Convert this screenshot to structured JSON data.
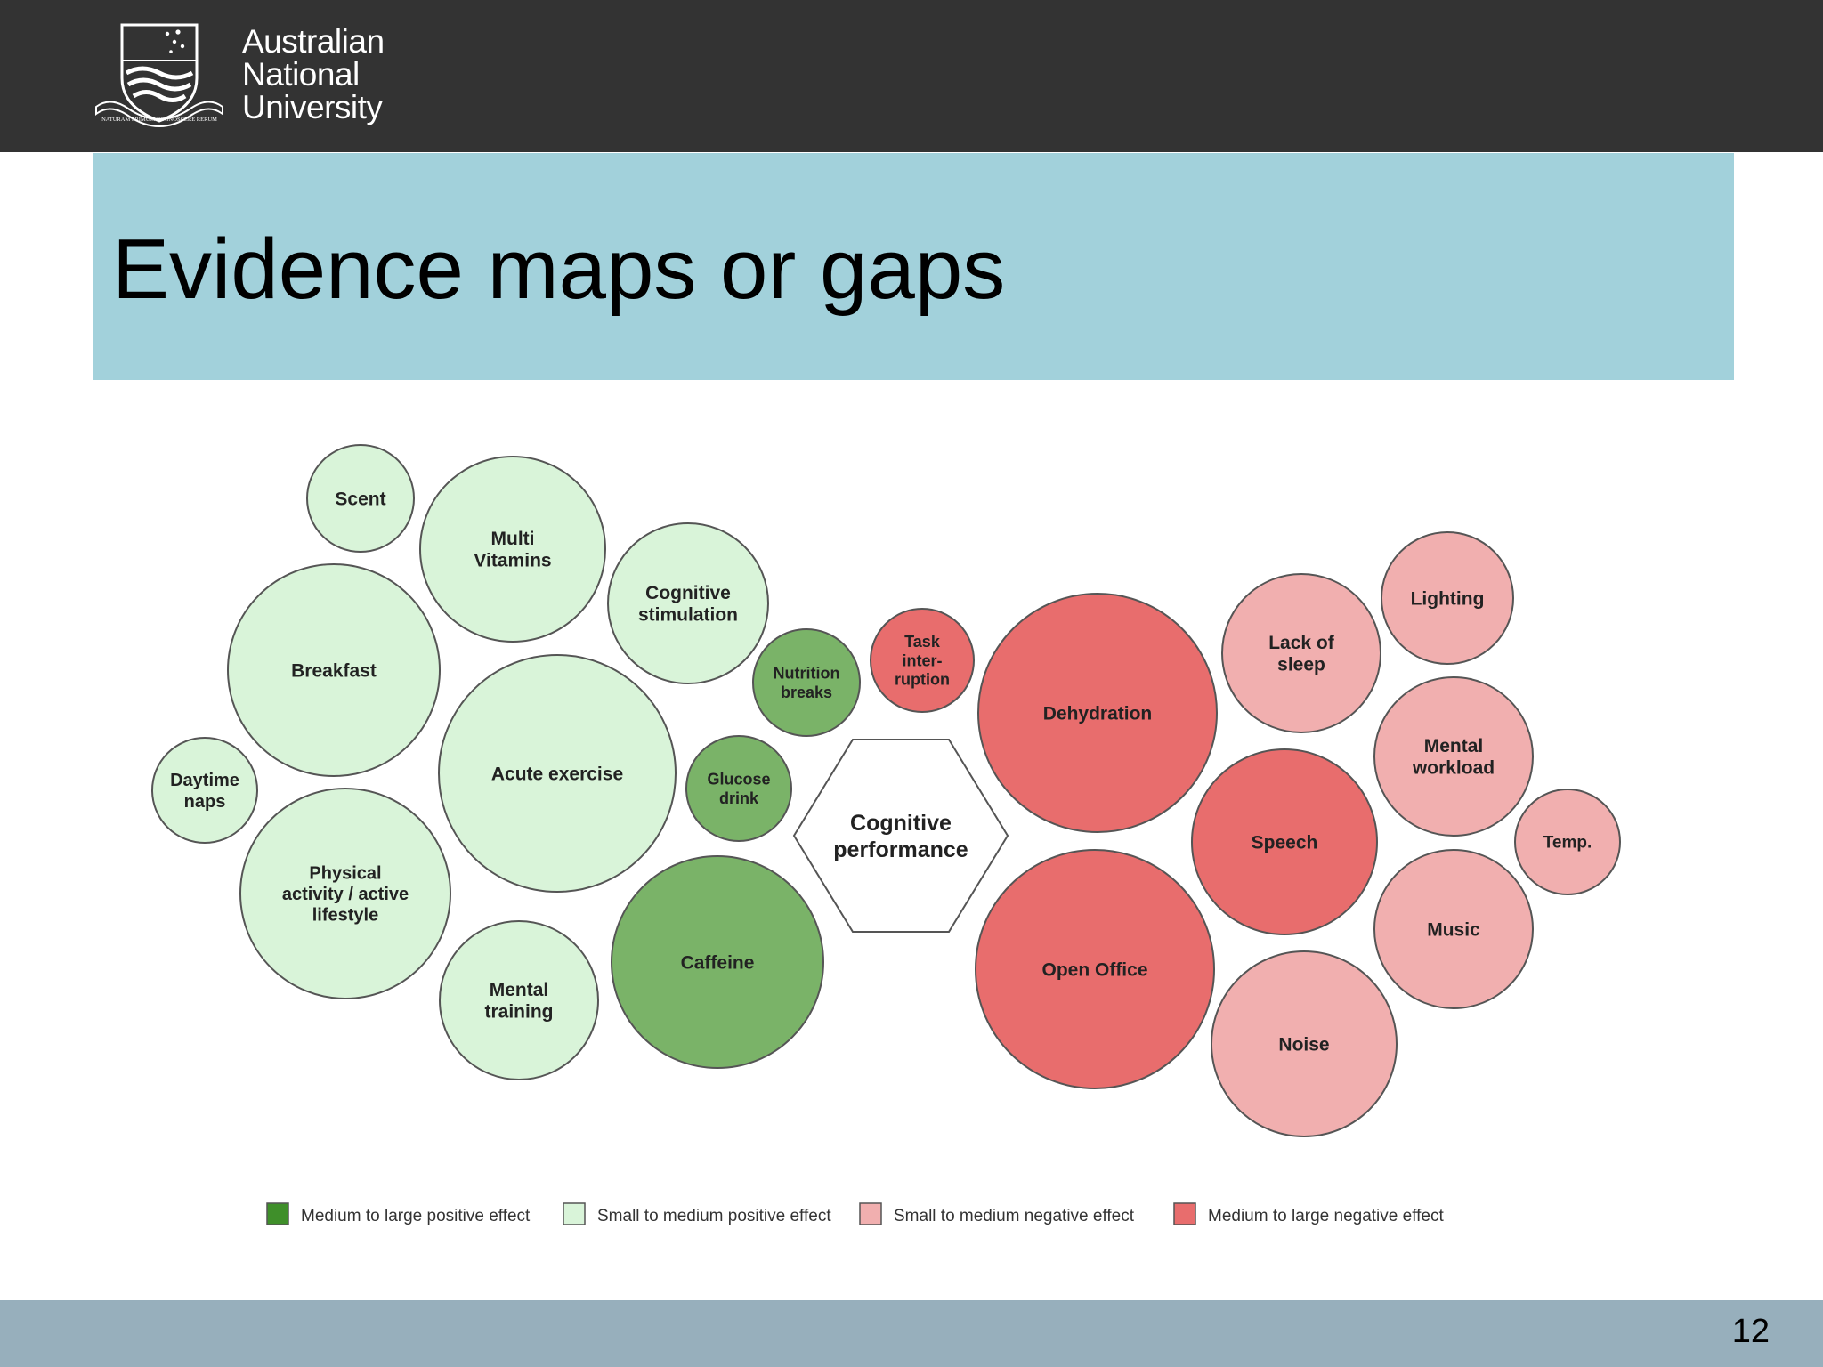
{
  "header": {
    "logo_text": [
      "Australian",
      "National",
      "University"
    ],
    "logo_icon": "anu-crest-icon",
    "crest_motto": "NATURAM PRIMUM COGNOSCERE RERUM"
  },
  "title": "Evidence maps or gaps",
  "colors": {
    "medium_large_positive": "#7ab368",
    "small_medium_positive": "#d9f4d9",
    "small_medium_negative": "#f1afaf",
    "medium_large_negative": "#e86d6d",
    "title_band": "#a2d1db",
    "header": "#333333",
    "footer": "#97afbc"
  },
  "diagram": {
    "center": "Cognitive performance",
    "bubbles": [
      {
        "label": "Scent",
        "effect": "small_medium_positive"
      },
      {
        "label": "Multi Vitamins",
        "effect": "small_medium_positive"
      },
      {
        "label": "Cognitive stimulation",
        "effect": "small_medium_positive"
      },
      {
        "label": "Breakfast",
        "effect": "small_medium_positive"
      },
      {
        "label": "Nutrition breaks",
        "effect": "medium_large_positive"
      },
      {
        "label": "Task inter- ruption",
        "effect": "medium_large_negative"
      },
      {
        "label": "Dehydration",
        "effect": "medium_large_negative"
      },
      {
        "label": "Lack of sleep",
        "effect": "small_medium_negative"
      },
      {
        "label": "Lighting",
        "effect": "small_medium_negative"
      },
      {
        "label": "Acute exercise",
        "effect": "small_medium_positive"
      },
      {
        "label": "Glucose drink",
        "effect": "medium_large_positive"
      },
      {
        "label": "Daytime naps",
        "effect": "small_medium_positive"
      },
      {
        "label": "Mental workload",
        "effect": "small_medium_negative"
      },
      {
        "label": "Speech",
        "effect": "medium_large_negative"
      },
      {
        "label": "Temp.",
        "effect": "small_medium_negative"
      },
      {
        "label": "Physical activity / active lifestyle",
        "effect": "small_medium_positive"
      },
      {
        "label": "Music",
        "effect": "small_medium_negative"
      },
      {
        "label": "Caffeine",
        "effect": "medium_large_positive"
      },
      {
        "label": "Open Office",
        "effect": "medium_large_negative"
      },
      {
        "label": "Mental training",
        "effect": "small_medium_positive"
      },
      {
        "label": "Noise",
        "effect": "small_medium_negative"
      }
    ]
  },
  "legend": [
    {
      "label": "Medium to large positive effect",
      "effect": "medium_large_positive"
    },
    {
      "label": "Small to medium positive effect",
      "effect": "small_medium_positive"
    },
    {
      "label": "Small to medium negative effect",
      "effect": "small_medium_negative"
    },
    {
      "label": "Medium to large negative effect",
      "effect": "medium_large_negative"
    }
  ],
  "footer": {
    "page_number": "12"
  }
}
